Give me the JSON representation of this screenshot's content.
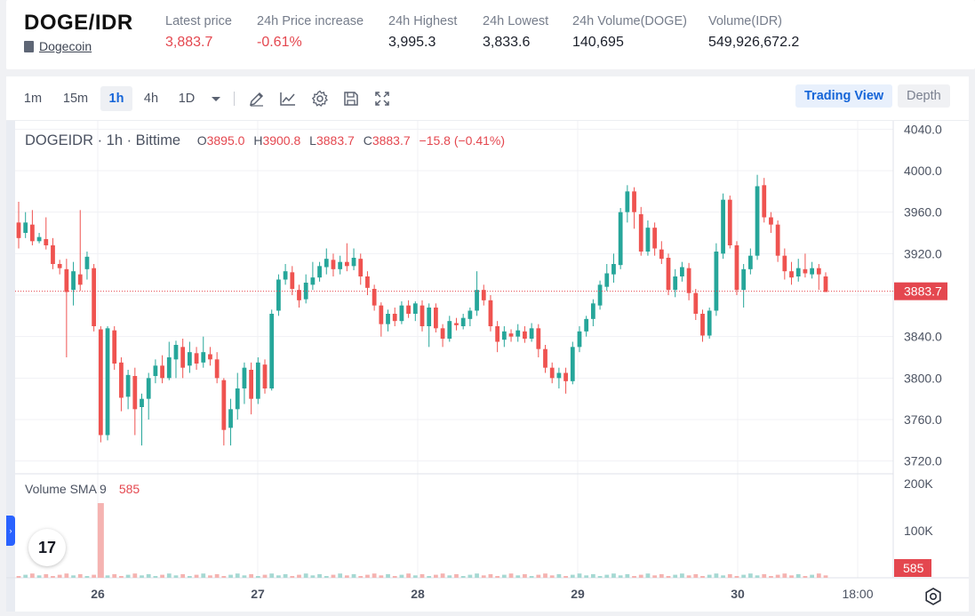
{
  "header": {
    "pair": "DOGE/IDR",
    "coin_name": "Dogecoin",
    "stats": [
      {
        "label": "Latest price",
        "value": "3,883.7",
        "color": "red"
      },
      {
        "label": "24h Price increase",
        "value": "-0.61%",
        "color": "red"
      },
      {
        "label": "24h Highest",
        "value": "3,995.3",
        "color": "default"
      },
      {
        "label": "24h Lowest",
        "value": "3,833.6",
        "color": "default"
      },
      {
        "label": "24h Volume(DOGE)",
        "value": "140,695",
        "color": "default"
      },
      {
        "label": "Volume(IDR)",
        "value": "549,926,672.2",
        "color": "default"
      }
    ]
  },
  "toolbar": {
    "timeframes": [
      "1m",
      "15m",
      "1h",
      "4h",
      "1D"
    ],
    "active_timeframe": "1h",
    "tools": [
      "dropdown-chevron-icon",
      "drawing-pen-icon",
      "indicators-icon",
      "settings-gear-icon",
      "save-icon",
      "fullscreen-icon"
    ],
    "trading_view_label": "Trading View",
    "depth_label": "Depth"
  },
  "legend": {
    "symbol": "DOGEIDR · 1h · Bittime",
    "o_key": "O",
    "o_val": "3895.0",
    "h_key": "H",
    "h_val": "3900.8",
    "l_key": "L",
    "l_val": "3883.7",
    "c_key": "C",
    "c_val": "3883.7",
    "change": "−15.8 (−0.41%)"
  },
  "volume_legend": {
    "label": "Volume SMA 9",
    "value": "585"
  },
  "tv_logo_text": "17",
  "colors": {
    "up": "#26a69a",
    "down": "#ef5350",
    "accent": "#1565d8",
    "price_line": "#e4474f"
  },
  "chart_data": {
    "type": "candlestick",
    "symbol": "DOGEIDR",
    "interval": "1h",
    "price_axis_ticks": [
      "4040.0",
      "4000.0",
      "3960.0",
      "3920.0",
      "3880.0",
      "3840.0",
      "3800.0",
      "3760.0",
      "3720.0"
    ],
    "price_range": [
      3712,
      4048
    ],
    "current_price_label": "3883.7",
    "volume_axis_ticks": [
      "200K",
      "100K"
    ],
    "volume_label": "585",
    "x_tick_labels": [
      "26",
      "27",
      "28",
      "29",
      "30",
      "18:00"
    ],
    "candles": [
      [
        3950,
        3935,
        3970,
        3925
      ],
      [
        3940,
        3950,
        3960,
        3935
      ],
      [
        3948,
        3932,
        3962,
        3928
      ],
      [
        3932,
        3936,
        3940,
        3930
      ],
      [
        3934,
        3928,
        3955,
        3924
      ],
      [
        3928,
        3910,
        3935,
        3905
      ],
      [
        3910,
        3906,
        3914,
        3900
      ],
      [
        3905,
        3883,
        3915,
        3820
      ],
      [
        3885,
        3903,
        3912,
        3870
      ],
      [
        3900,
        3890,
        3962,
        3884
      ],
      [
        3905,
        3917,
        3922,
        3895
      ],
      [
        3906,
        3850,
        3910,
        3845
      ],
      [
        3847,
        3745,
        3850,
        3738
      ],
      [
        3745,
        3848,
        3850,
        3740
      ],
      [
        3846,
        3814,
        3850,
        3808
      ],
      [
        3815,
        3781,
        3820,
        3768
      ],
      [
        3782,
        3803,
        3808,
        3770
      ],
      [
        3802,
        3770,
        3810,
        3745
      ],
      [
        3772,
        3780,
        3785,
        3735
      ],
      [
        3780,
        3800,
        3805,
        3760
      ],
      [
        3802,
        3812,
        3818,
        3795
      ],
      [
        3812,
        3800,
        3822,
        3795
      ],
      [
        3800,
        3820,
        3835,
        3798
      ],
      [
        3818,
        3832,
        3836,
        3800
      ],
      [
        3830,
        3810,
        3838,
        3800
      ],
      [
        3812,
        3825,
        3835,
        3805
      ],
      [
        3824,
        3814,
        3830,
        3808
      ],
      [
        3815,
        3825,
        3840,
        3810
      ],
      [
        3823,
        3818,
        3830,
        3812
      ],
      [
        3818,
        3800,
        3825,
        3795
      ],
      [
        3798,
        3750,
        3800,
        3735
      ],
      [
        3752,
        3770,
        3780,
        3735
      ],
      [
        3770,
        3790,
        3805,
        3760
      ],
      [
        3790,
        3810,
        3815,
        3775
      ],
      [
        3808,
        3780,
        3815,
        3765
      ],
      [
        3780,
        3815,
        3820,
        3775
      ],
      [
        3813,
        3790,
        3818,
        3785
      ],
      [
        3790,
        3862,
        3866,
        3788
      ],
      [
        3865,
        3895,
        3900,
        3860
      ],
      [
        3895,
        3903,
        3910,
        3890
      ],
      [
        3902,
        3886,
        3908,
        3880
      ],
      [
        3885,
        3875,
        3890,
        3868
      ],
      [
        3876,
        3892,
        3900,
        3872
      ],
      [
        3890,
        3897,
        3912,
        3885
      ],
      [
        3897,
        3908,
        3912,
        3893
      ],
      [
        3907,
        3915,
        3925,
        3900
      ],
      [
        3914,
        3905,
        3920,
        3898
      ],
      [
        3905,
        3912,
        3918,
        3900
      ],
      [
        3912,
        3908,
        3930,
        3903
      ],
      [
        3908,
        3916,
        3925,
        3904
      ],
      [
        3915,
        3898,
        3920,
        3890
      ],
      [
        3898,
        3887,
        3903,
        3880
      ],
      [
        3886,
        3870,
        3890,
        3865
      ],
      [
        3870,
        3852,
        3873,
        3840
      ],
      [
        3852,
        3862,
        3866,
        3845
      ],
      [
        3862,
        3855,
        3868,
        3850
      ],
      [
        3855,
        3870,
        3874,
        3852
      ],
      [
        3870,
        3862,
        3875,
        3858
      ],
      [
        3862,
        3872,
        3874,
        3855
      ],
      [
        3870,
        3850,
        3875,
        3845
      ],
      [
        3850,
        3868,
        3872,
        3830
      ],
      [
        3868,
        3848,
        3872,
        3844
      ],
      [
        3848,
        3838,
        3852,
        3830
      ],
      [
        3838,
        3855,
        3860,
        3835
      ],
      [
        3853,
        3851,
        3858,
        3846
      ],
      [
        3850,
        3858,
        3862,
        3847
      ],
      [
        3857,
        3865,
        3868,
        3850
      ],
      [
        3865,
        3885,
        3903,
        3860
      ],
      [
        3885,
        3875,
        3890,
        3870
      ],
      [
        3875,
        3850,
        3880,
        3845
      ],
      [
        3850,
        3835,
        3855,
        3825
      ],
      [
        3837,
        3845,
        3850,
        3830
      ],
      [
        3843,
        3840,
        3847,
        3835
      ],
      [
        3840,
        3846,
        3852,
        3835
      ],
      [
        3845,
        3838,
        3850,
        3834
      ],
      [
        3838,
        3848,
        3853,
        3835
      ],
      [
        3848,
        3828,
        3852,
        3820
      ],
      [
        3828,
        3810,
        3832,
        3805
      ],
      [
        3810,
        3800,
        3815,
        3795
      ],
      [
        3800,
        3805,
        3810,
        3790
      ],
      [
        3805,
        3797,
        3810,
        3785
      ],
      [
        3797,
        3830,
        3835,
        3794
      ],
      [
        3830,
        3845,
        3850,
        3825
      ],
      [
        3845,
        3857,
        3860,
        3840
      ],
      [
        3857,
        3872,
        3876,
        3850
      ],
      [
        3870,
        3890,
        3894,
        3866
      ],
      [
        3888,
        3901,
        3910,
        3884
      ],
      [
        3900,
        3910,
        3920,
        3892
      ],
      [
        3909,
        3960,
        3964,
        3905
      ],
      [
        3960,
        3980,
        3986,
        3950
      ],
      [
        3980,
        3960,
        3984,
        3944
      ],
      [
        3958,
        3922,
        3965,
        3918
      ],
      [
        3922,
        3945,
        3952,
        3918
      ],
      [
        3945,
        3925,
        3950,
        3918
      ],
      [
        3924,
        3915,
        3932,
        3910
      ],
      [
        3916,
        3885,
        3920,
        3880
      ],
      [
        3885,
        3898,
        3905,
        3878
      ],
      [
        3898,
        3907,
        3912,
        3893
      ],
      [
        3906,
        3882,
        3911,
        3875
      ],
      [
        3882,
        3862,
        3886,
        3856
      ],
      [
        3862,
        3841,
        3866,
        3835
      ],
      [
        3841,
        3865,
        3868,
        3838
      ],
      [
        3865,
        3922,
        3930,
        3860
      ],
      [
        3920,
        3972,
        3978,
        3915
      ],
      [
        3972,
        3928,
        3976,
        3925
      ],
      [
        3928,
        3885,
        3932,
        3880
      ],
      [
        3885,
        3905,
        3910,
        3868
      ],
      [
        3905,
        3918,
        3925,
        3900
      ],
      [
        3918,
        3985,
        3996,
        3914
      ],
      [
        3986,
        3955,
        3993,
        3950
      ],
      [
        3955,
        3948,
        3960,
        3940
      ],
      [
        3948,
        3918,
        3952,
        3912
      ],
      [
        3918,
        3903,
        3925,
        3895
      ],
      [
        3903,
        3897,
        3912,
        3890
      ],
      [
        3898,
        3906,
        3915,
        3893
      ],
      [
        3905,
        3901,
        3920,
        3897
      ],
      [
        3900,
        3906,
        3912,
        3896
      ],
      [
        3906,
        3900,
        3910,
        3885
      ],
      [
        3898,
        3883,
        3902,
        3883
      ]
    ]
  }
}
